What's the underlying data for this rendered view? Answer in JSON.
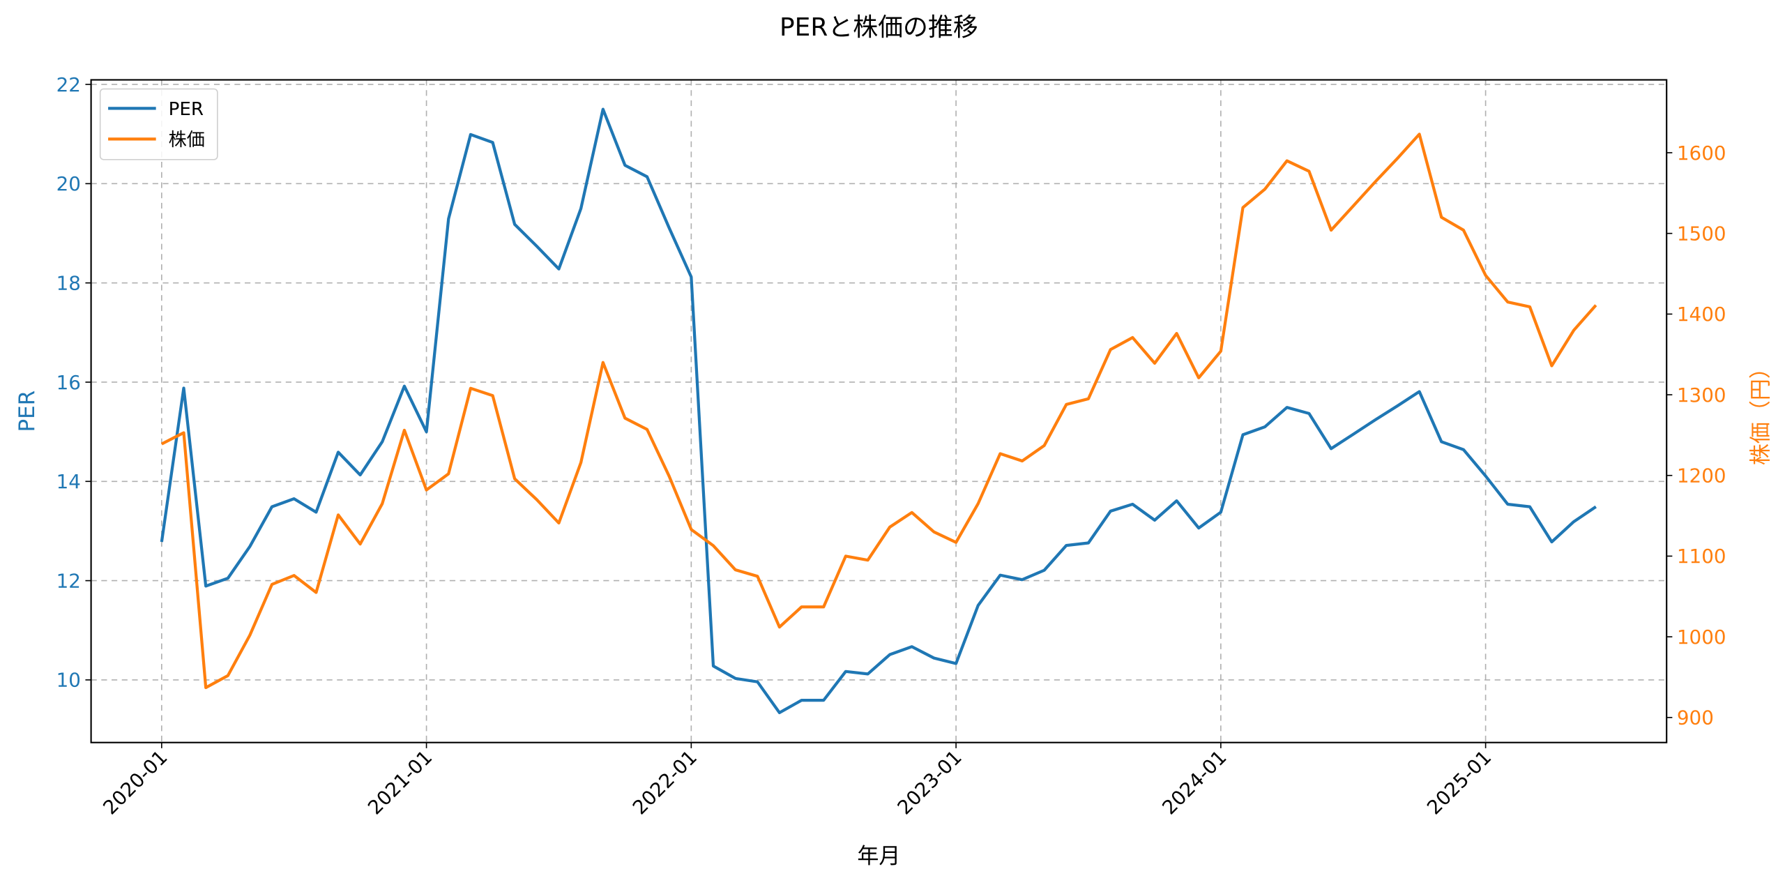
{
  "chart_data": {
    "type": "line",
    "title": "PERと株価の推移",
    "xlabel": "年月",
    "ylabel": "PER",
    "ylabel_right": "株価（円）",
    "x_tick_labels": [
      "2020-01",
      "2021-01",
      "2022-01",
      "2023-01",
      "2024-01",
      "2025-01"
    ],
    "y_ticks_left": [
      10,
      12,
      14,
      16,
      18,
      20,
      22
    ],
    "y_ticks_right": [
      900,
      1000,
      1100,
      1200,
      1300,
      1400,
      1500,
      1600
    ],
    "ylim_left": [
      8.75,
      22.1
    ],
    "ylim_right": [
      868,
      1690
    ],
    "grid": true,
    "legend_position": "upper left",
    "x": [
      "2020-01",
      "2020-02",
      "2020-03",
      "2020-04",
      "2020-05",
      "2020-06",
      "2020-07",
      "2020-08",
      "2020-09",
      "2020-10",
      "2020-11",
      "2020-12",
      "2021-01",
      "2021-02",
      "2021-03",
      "2021-04",
      "2021-05",
      "2021-06",
      "2021-07",
      "2021-08",
      "2021-09",
      "2021-10",
      "2021-11",
      "2021-12",
      "2022-01",
      "2022-02",
      "2022-03",
      "2022-04",
      "2022-05",
      "2022-06",
      "2022-07",
      "2022-08",
      "2022-09",
      "2022-10",
      "2022-11",
      "2022-12",
      "2023-01",
      "2023-02",
      "2023-03",
      "2023-04",
      "2023-05",
      "2023-06",
      "2023-07",
      "2023-08",
      "2023-09",
      "2023-10",
      "2023-11",
      "2023-12",
      "2024-01",
      "2024-02",
      "2024-03",
      "2024-04",
      "2024-05",
      "2024-06",
      "2024-07",
      "2024-08",
      "2024-09",
      "2024-10",
      "2024-11",
      "2024-12",
      "2025-01",
      "2025-02",
      "2025-03",
      "2025-04",
      "2025-05",
      "2025-06"
    ],
    "series": [
      {
        "name": "PER",
        "axis": "left",
        "color": "#1f77b4",
        "values": [
          12.78,
          15.88,
          11.89,
          12.05,
          12.69,
          13.49,
          13.65,
          13.38,
          14.59,
          14.13,
          14.8,
          15.92,
          15.0,
          19.29,
          20.99,
          20.83,
          19.18,
          18.74,
          18.28,
          19.5,
          21.5,
          20.37,
          20.14,
          19.11,
          18.12,
          10.28,
          10.03,
          9.96,
          9.34,
          9.59,
          9.59,
          10.17,
          10.12,
          10.51,
          10.67,
          10.44,
          10.33,
          11.5,
          12.11,
          12.02,
          12.21,
          12.71,
          12.76,
          13.4,
          13.54,
          13.22,
          13.61,
          13.06,
          13.38,
          14.94,
          15.1,
          15.49,
          15.37,
          14.66,
          14.95,
          15.24,
          15.52,
          15.81,
          14.8,
          14.64,
          14.11,
          13.54,
          13.49,
          12.78,
          13.19,
          13.49
        ]
      },
      {
        "name": "株価",
        "axis": "right",
        "color": "#ff7f0e",
        "values": [
          1239,
          1253,
          937,
          952,
          1002,
          1065,
          1076,
          1055,
          1151,
          1115,
          1165,
          1256,
          1182,
          1202,
          1308,
          1299,
          1196,
          1170,
          1141,
          1216,
          1340,
          1271,
          1257,
          1199,
          1133,
          1113,
          1083,
          1075,
          1012,
          1037,
          1037,
          1100,
          1095,
          1136,
          1154,
          1130,
          1117,
          1165,
          1227,
          1218,
          1237,
          1288,
          1295,
          1356,
          1371,
          1339,
          1376,
          1321,
          1354,
          1532,
          1555,
          1590,
          1577,
          1504,
          1534,
          1564,
          1593,
          1623,
          1520,
          1504,
          1448,
          1415,
          1409,
          1336,
          1380,
          1411
        ]
      }
    ]
  },
  "colors": {
    "left_axis": "#1f77b4",
    "right_axis": "#ff7f0e",
    "grid": "#b0b0b0",
    "frame": "#000000"
  }
}
